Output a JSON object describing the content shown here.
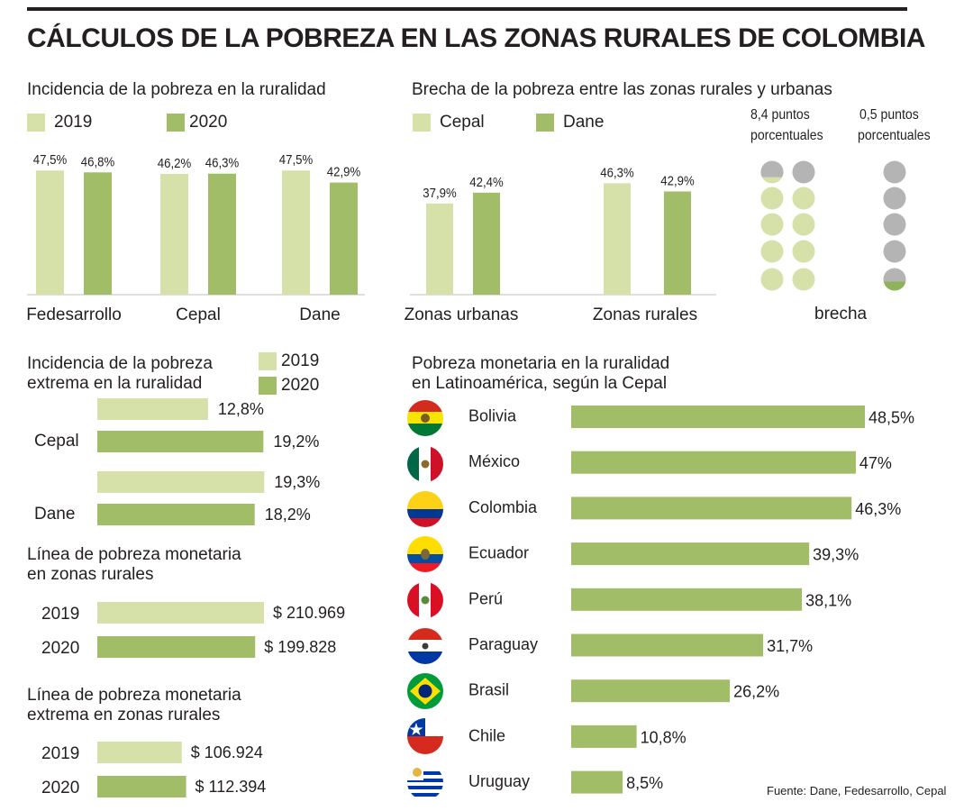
{
  "title": "CÁLCULOS DE LA POBREZA EN LAS ZONAS RURALES DE COLOMBIA",
  "colors": {
    "light": "#d6e0a9",
    "dark": "#a1bd68",
    "gray": "#b4b4b4",
    "text": "#231f20"
  },
  "chart_data": [
    {
      "id": "incidencia",
      "type": "bar",
      "title": "Incidencia de la pobreza en la ruralidad",
      "categories": [
        "Fedesarrollo",
        "Cepal",
        "Dane"
      ],
      "series": [
        {
          "name": "2019",
          "values": [
            47.5,
            46.2,
            47.5
          ],
          "labels": [
            "47,5%",
            "46,2%",
            "47,5%"
          ]
        },
        {
          "name": "2020",
          "values": [
            46.8,
            46.3,
            42.9
          ],
          "labels": [
            "46,8%",
            "46,3%",
            "42,9%"
          ]
        }
      ]
    },
    {
      "id": "brecha",
      "type": "bar",
      "title": "Brecha de la pobreza entre las zonas rurales y urbanas",
      "categories": [
        "Zonas urbanas",
        "Zonas rurales"
      ],
      "series": [
        {
          "name": "Cepal",
          "values": [
            37.9,
            46.3
          ],
          "labels": [
            "37,9%",
            "46,3%"
          ]
        },
        {
          "name": "Dane",
          "values": [
            42.4,
            42.9
          ],
          "labels": [
            "42,4%",
            "42,9%"
          ]
        }
      ]
    },
    {
      "id": "brecha-puntos",
      "type": "pictogram",
      "label": "brecha",
      "items": [
        {
          "text_1": "8,4 puntos",
          "text_2": "porcentuales",
          "value": 8.4
        },
        {
          "text_1": "0,5 puntos",
          "text_2": "porcentuales",
          "value": 0.5
        }
      ]
    },
    {
      "id": "extrema",
      "type": "bar",
      "title_1": "Incidencia de la pobreza",
      "title_2": "extrema en la ruralidad",
      "categories": [
        "Cepal",
        "Dane"
      ],
      "series": [
        {
          "name": "2019",
          "values": [
            12.8,
            19.3
          ],
          "labels": [
            "12,8%",
            "19,3%"
          ]
        },
        {
          "name": "2020",
          "values": [
            19.2,
            18.2
          ],
          "labels": [
            "19,2%",
            "18,2%"
          ]
        }
      ]
    },
    {
      "id": "linea",
      "type": "bar",
      "title_1": "Línea de pobreza monetaria",
      "title_2": "en zonas rurales",
      "categories": [
        "2019",
        "2020"
      ],
      "values": [
        210969,
        199828
      ],
      "labels": [
        "$ 210.969",
        "$ 199.828"
      ]
    },
    {
      "id": "linea-extrema",
      "type": "bar",
      "title_1": "Línea de pobreza monetaria",
      "title_2": "extrema en zonas rurales",
      "categories": [
        "2019",
        "2020"
      ],
      "values": [
        106924,
        112394
      ],
      "labels": [
        "$ 106.924",
        "$ 112.394"
      ]
    },
    {
      "id": "latam",
      "type": "bar",
      "title_1": "Pobreza monetaria en la ruralidad",
      "title_2": "en Latinoamérica, según la Cepal",
      "categories": [
        "Bolivia",
        "México",
        "Colombia",
        "Ecuador",
        "Perú",
        "Paraguay",
        "Brasil",
        "Chile",
        "Uruguay"
      ],
      "values": [
        48.5,
        47,
        46.3,
        39.3,
        38.1,
        31.7,
        26.2,
        10.8,
        8.5
      ],
      "labels": [
        "48,5%",
        "47%",
        "46,3%",
        "39,3%",
        "38,1%",
        "31,7%",
        "26,2%",
        "10,8%",
        "8,5%"
      ]
    }
  ],
  "source": "Fuente: Dane, Fedesarrollo, Cepal"
}
